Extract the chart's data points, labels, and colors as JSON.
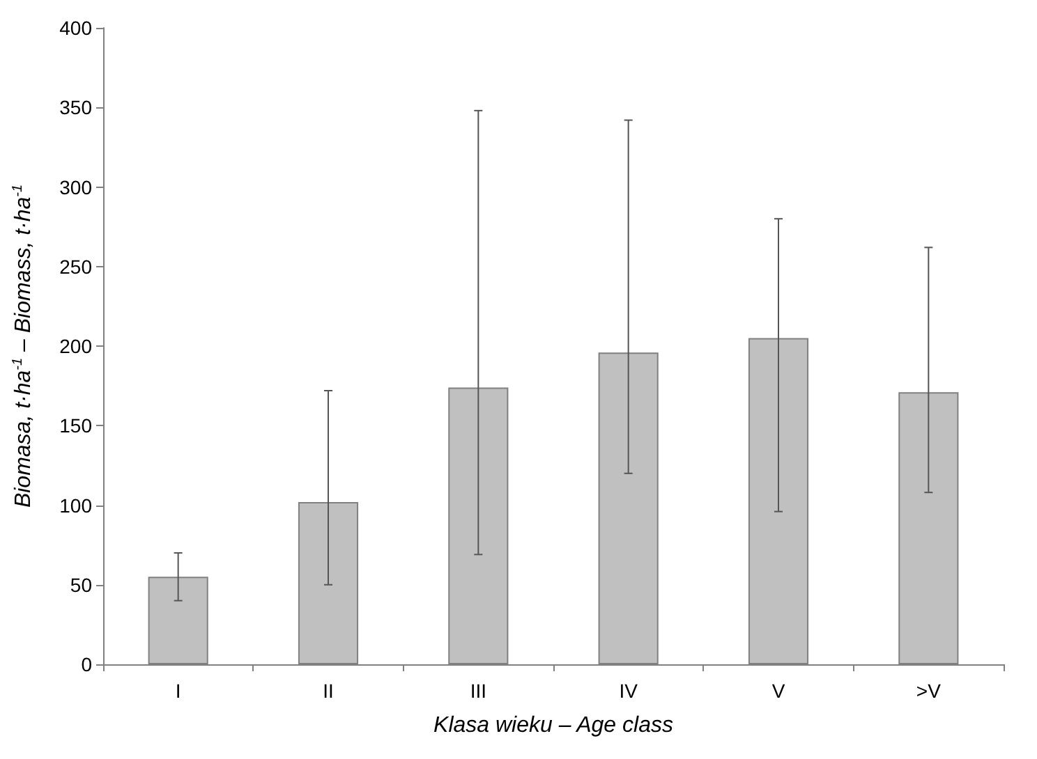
{
  "chart_data": {
    "type": "bar",
    "xlabel": "Klasa wieku – Age class",
    "ylabel": "Biomasa, t·ha$^{-1}$ – Biomass, t·ha$^{-1}$",
    "categories": [
      "I",
      "II",
      "III",
      "IV",
      "V",
      ">V"
    ],
    "values": [
      55,
      102,
      174,
      196,
      205,
      171
    ],
    "errors": [
      [
        40,
        70
      ],
      [
        50,
        172
      ],
      [
        69,
        348
      ],
      [
        120,
        342
      ],
      [
        96,
        280
      ],
      [
        108,
        262
      ]
    ],
    "color": "#c0c0c0",
    "ylim": [
      0,
      400
    ],
    "yticks": [
      0,
      50,
      100,
      150,
      200,
      250,
      300,
      350,
      400
    ],
    "grid": false
  }
}
